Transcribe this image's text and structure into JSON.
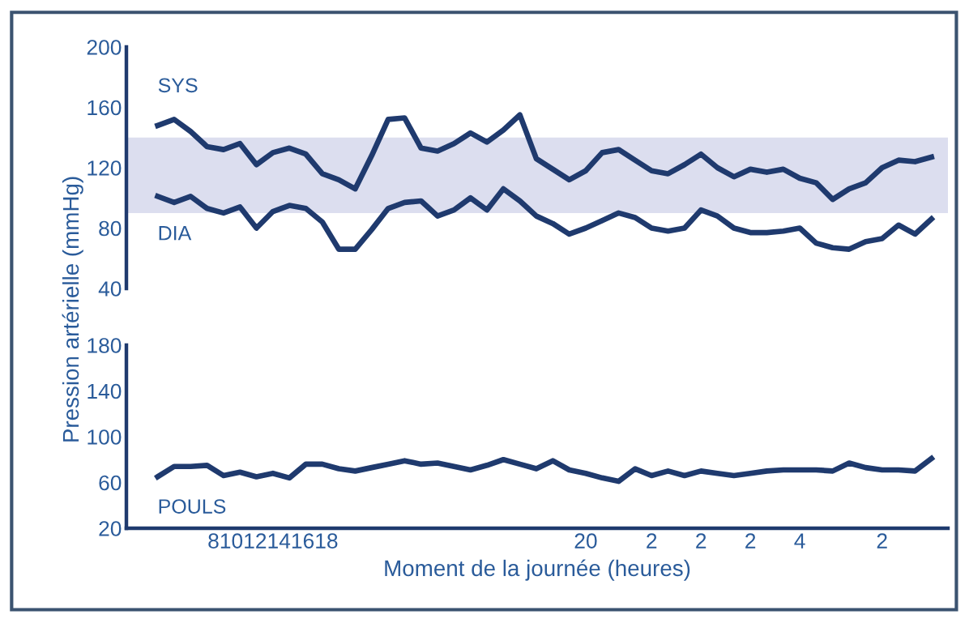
{
  "chart_data": [
    {
      "type": "line",
      "ylabel": "Pression artérielle (mmHg)",
      "categories": [
        null,
        null,
        null,
        null,
        null,
        null,
        null,
        "81012141618",
        null,
        null,
        null,
        null,
        null,
        null,
        null,
        null,
        null,
        null,
        null,
        null,
        null,
        null,
        null,
        null,
        null,
        null,
        "20",
        null,
        null,
        null,
        "2",
        null,
        null,
        "2",
        null,
        null,
        "2",
        null,
        null,
        "4",
        null,
        null,
        null,
        null,
        "2",
        null,
        null,
        null
      ],
      "series": [
        {
          "name": "SYS",
          "color": "#1f3a6e",
          "values": [
            148,
            152,
            144,
            134,
            132,
            136,
            122,
            130,
            133,
            129,
            116,
            112,
            106,
            128,
            152,
            153,
            133,
            131,
            136,
            143,
            137,
            145,
            155,
            126,
            119,
            112,
            118,
            130,
            132,
            125,
            118,
            116,
            122,
            129,
            120,
            114,
            119,
            117,
            119,
            113,
            110,
            99,
            106,
            110,
            120,
            125,
            124,
            127
          ]
        },
        {
          "name": "DIA",
          "color": "#1f3a6e",
          "values": [
            101,
            97,
            101,
            93,
            90,
            94,
            80,
            91,
            95,
            93,
            84,
            66,
            66,
            79,
            93,
            97,
            98,
            88,
            92,
            100,
            92,
            106,
            98,
            88,
            83,
            76,
            80,
            85,
            90,
            87,
            80,
            78,
            80,
            92,
            88,
            80,
            77,
            77,
            78,
            80,
            70,
            67,
            66,
            71,
            73,
            82,
            76,
            86
          ]
        }
      ],
      "ylim": [
        40,
        200
      ],
      "yticks": [
        40,
        80,
        120,
        160,
        200
      ],
      "bands": [
        {
          "axis": "y",
          "from": 90,
          "to": 140,
          "color": "#dcdeef"
        }
      ],
      "tick_labels": "y",
      "grid": false,
      "legend": false
    },
    {
      "type": "line",
      "xlabel": "Moment de la journée (heures)",
      "categories": [
        null,
        null,
        null,
        null,
        null,
        null,
        null,
        "81012141618",
        null,
        null,
        null,
        null,
        null,
        null,
        null,
        null,
        null,
        null,
        null,
        null,
        null,
        null,
        null,
        null,
        null,
        null,
        "20",
        null,
        null,
        null,
        "2",
        null,
        null,
        "2",
        null,
        null,
        "2",
        null,
        null,
        "4",
        null,
        null,
        null,
        null,
        "2",
        null,
        null,
        null
      ],
      "series": [
        {
          "name": "POULS",
          "color": "#1f3a6e",
          "values": [
            65,
            74,
            74,
            75,
            66,
            69,
            65,
            68,
            64,
            76,
            76,
            72,
            70,
            73,
            76,
            79,
            76,
            77,
            74,
            71,
            75,
            80,
            76,
            72,
            79,
            71,
            68,
            64,
            61,
            72,
            66,
            70,
            66,
            70,
            68,
            66,
            68,
            70,
            71,
            71,
            71,
            70,
            77,
            73,
            71,
            71,
            70,
            81
          ]
        }
      ],
      "ylim": [
        20,
        180
      ],
      "yticks": [
        20,
        60,
        100,
        140,
        180
      ],
      "grid": false,
      "legend": false
    }
  ]
}
